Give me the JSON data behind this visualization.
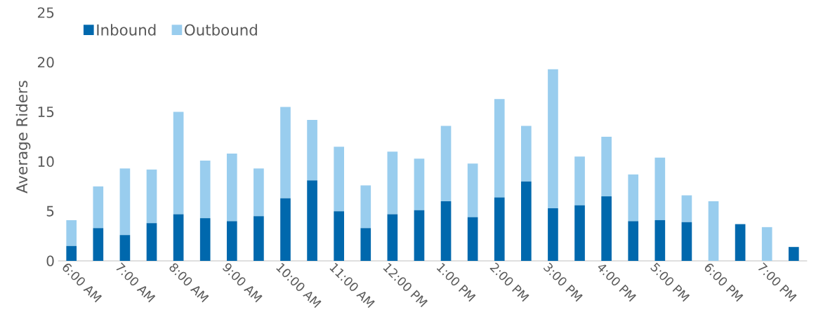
{
  "chart_data": {
    "type": "bar",
    "ylabel": "Average Riders",
    "stacked": true,
    "legend": "top left",
    "categories": [
      "6:00 AM",
      null,
      "7:00 AM",
      null,
      "8:00 AM",
      null,
      "9:00 AM",
      null,
      "10:00 AM",
      null,
      "11:00 AM",
      null,
      "12:00 PM",
      null,
      "1:00 PM",
      null,
      "2:00 PM",
      null,
      "3:00 PM",
      null,
      "4:00 PM",
      null,
      "5:00 PM",
      null,
      "6:00 PM",
      null,
      "7:00 PM",
      null
    ],
    "series": [
      {
        "name": "Inbound",
        "color": "#0068ad",
        "values": [
          1.5,
          3.3,
          2.6,
          3.8,
          4.7,
          4.3,
          4.0,
          4.5,
          6.3,
          8.1,
          5.0,
          3.3,
          4.7,
          5.1,
          6.0,
          4.4,
          6.4,
          8.0,
          5.3,
          5.6,
          6.5,
          4.0,
          4.1,
          3.9,
          0,
          3.7,
          0,
          1.4
        ]
      },
      {
        "name": "Outbound",
        "color": "#99cdee",
        "values": [
          2.6,
          4.2,
          6.7,
          5.4,
          10.3,
          5.8,
          6.8,
          4.8,
          9.2,
          6.1,
          6.5,
          4.3,
          6.3,
          5.2,
          7.6,
          5.4,
          9.9,
          5.6,
          14.0,
          4.9,
          6.0,
          4.7,
          6.3,
          2.7,
          6.0,
          0,
          3.4,
          0
        ]
      }
    ],
    "ylim": [
      0,
      25
    ],
    "yticks": [
      0,
      5,
      10,
      15,
      20,
      25
    ]
  }
}
